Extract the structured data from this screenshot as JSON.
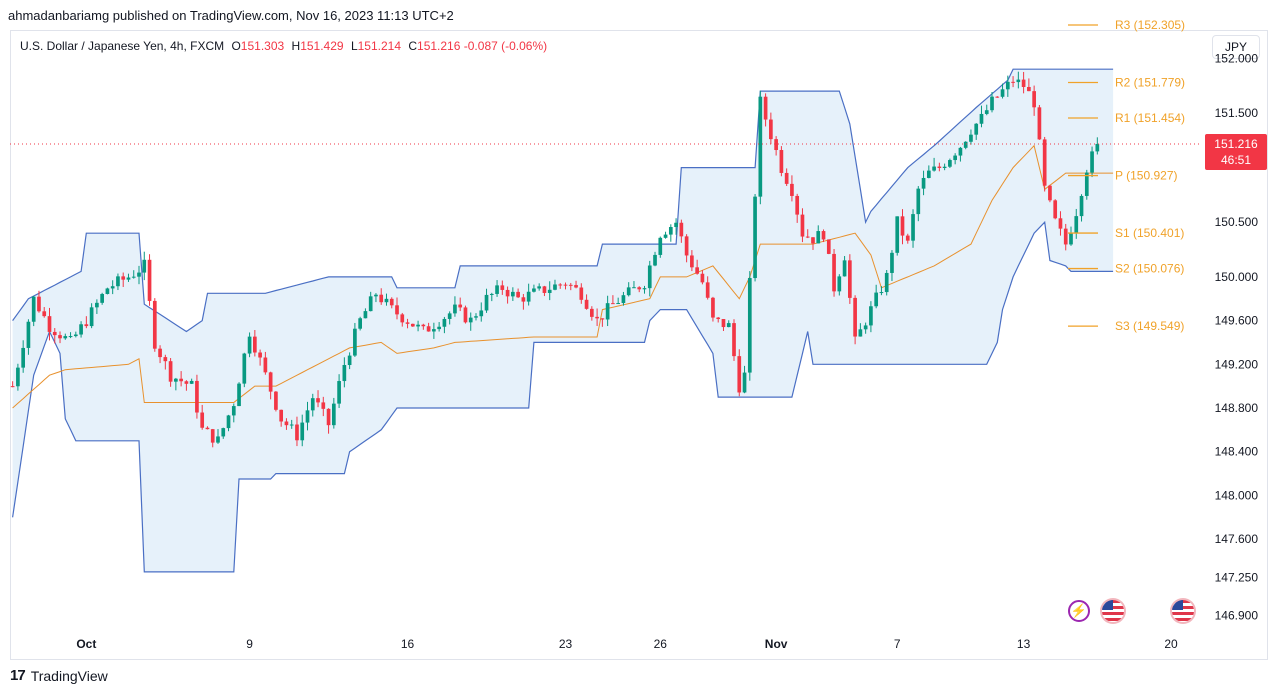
{
  "publisher_line": "ahmadanbariamg published on TradingView.com, Nov 16, 2023 11:13 UTC+2",
  "legend": {
    "symbol": "U.S. Dollar / Japanese Yen, 4h, FXCM",
    "open_label": "O",
    "open": "151.303",
    "high_label": "H",
    "high": "151.429",
    "low_label": "L",
    "low": "151.214",
    "close_label": "C",
    "close": "151.216",
    "change": "-0.087 (-0.06%)"
  },
  "currency_button": "JPY",
  "price_tag": {
    "price": "151.216",
    "countdown": "46:51"
  },
  "footer": {
    "brand": "TradingView",
    "logo_glyph": "17"
  },
  "icons": [
    "lightning-icon",
    "us-flag-icon",
    "us-flag-icon"
  ],
  "colors": {
    "up": "#089981",
    "down": "#f23645",
    "channel": "#4a6fc4",
    "channel_fill": "#e6f1fa",
    "midline": "#e8912d",
    "pivot": "#f0a229",
    "price_tag": "#f23645"
  },
  "chart_data": {
    "type": "candlestick",
    "instrument": "U.S. Dollar / Japanese Yen",
    "timeframe": "4h",
    "ylim": [
      146.75,
      152.25
    ],
    "y_ticks": [
      152.0,
      151.5,
      151.0,
      150.5,
      150.0,
      149.6,
      149.2,
      148.8,
      148.4,
      148.0,
      147.6,
      147.25,
      146.9
    ],
    "y_tick_labels": [
      "152.000",
      "151.500",
      "",
      "150.500",
      "150.000",
      "149.600",
      "149.200",
      "148.800",
      "148.400",
      "148.000",
      "147.600",
      "147.250",
      "146.900"
    ],
    "x_ticks": [
      {
        "label": "Oct",
        "bar": 14,
        "bold": true
      },
      {
        "label": "9",
        "bar": 45
      },
      {
        "label": "16",
        "bar": 75
      },
      {
        "label": "23",
        "bar": 105
      },
      {
        "label": "26",
        "bar": 123
      },
      {
        "label": "Nov",
        "bar": 145,
        "bold": true
      },
      {
        "label": "7",
        "bar": 168
      },
      {
        "label": "13",
        "bar": 192
      },
      {
        "label": "20",
        "bar": 220
      }
    ],
    "pivots": [
      {
        "label": "R3",
        "value": 152.305
      },
      {
        "label": "R2",
        "value": 151.779
      },
      {
        "label": "R1",
        "value": 151.454
      },
      {
        "label": "P",
        "value": 150.927
      },
      {
        "label": "S1",
        "value": 150.401
      },
      {
        "label": "S2",
        "value": 150.076
      },
      {
        "label": "S3",
        "value": 149.549
      }
    ],
    "last_price": 151.216,
    "close_path": [
      [
        0,
        149.0
      ],
      [
        4,
        149.8
      ],
      [
        7,
        149.55
      ],
      [
        11,
        149.4
      ],
      [
        14,
        149.6
      ],
      [
        18,
        149.9
      ],
      [
        22,
        150.0
      ],
      [
        25,
        150.1
      ],
      [
        27,
        149.4
      ],
      [
        30,
        149.1
      ],
      [
        34,
        149.0
      ],
      [
        36,
        148.6
      ],
      [
        39,
        148.5
      ],
      [
        42,
        148.85
      ],
      [
        45,
        149.5
      ],
      [
        48,
        149.1
      ],
      [
        51,
        148.7
      ],
      [
        54,
        148.55
      ],
      [
        57,
        148.9
      ],
      [
        60,
        148.65
      ],
      [
        63,
        149.2
      ],
      [
        66,
        149.6
      ],
      [
        69,
        149.85
      ],
      [
        72,
        149.7
      ],
      [
        75,
        149.6
      ],
      [
        78,
        149.5
      ],
      [
        81,
        149.6
      ],
      [
        84,
        149.7
      ],
      [
        87,
        149.6
      ],
      [
        90,
        149.8
      ],
      [
        93,
        149.9
      ],
      [
        96,
        149.8
      ],
      [
        99,
        149.85
      ],
      [
        102,
        149.9
      ],
      [
        105,
        149.95
      ],
      [
        108,
        149.85
      ],
      [
        111,
        149.6
      ],
      [
        114,
        149.75
      ],
      [
        117,
        149.85
      ],
      [
        120,
        149.95
      ],
      [
        123,
        150.4
      ],
      [
        126,
        150.5
      ],
      [
        128,
        150.2
      ],
      [
        131,
        149.95
      ],
      [
        133,
        149.6
      ],
      [
        136,
        149.55
      ],
      [
        138,
        149.0
      ],
      [
        139,
        149.1
      ],
      [
        142,
        151.6
      ],
      [
        144,
        151.3
      ],
      [
        146,
        151.0
      ],
      [
        148,
        150.8
      ],
      [
        150,
        150.4
      ],
      [
        152,
        150.35
      ],
      [
        154,
        150.4
      ],
      [
        156,
        149.9
      ],
      [
        158,
        150.2
      ],
      [
        160,
        149.4
      ],
      [
        162,
        149.6
      ],
      [
        164,
        149.8
      ],
      [
        166,
        150.0
      ],
      [
        168,
        150.5
      ],
      [
        170,
        150.3
      ],
      [
        172,
        150.8
      ],
      [
        174,
        150.95
      ],
      [
        176,
        151.0
      ],
      [
        178,
        151.1
      ],
      [
        180,
        151.2
      ],
      [
        182,
        151.35
      ],
      [
        184,
        151.45
      ],
      [
        186,
        151.6
      ],
      [
        188,
        151.7
      ],
      [
        190,
        151.8
      ],
      [
        192,
        151.75
      ],
      [
        194,
        151.6
      ],
      [
        196,
        150.8
      ],
      [
        198,
        150.5
      ],
      [
        200,
        150.3
      ],
      [
        202,
        150.6
      ],
      [
        204,
        151.0
      ],
      [
        206,
        151.2
      ]
    ],
    "channel_upper": [
      [
        0,
        149.6
      ],
      [
        3,
        149.8
      ],
      [
        13,
        150.05
      ],
      [
        14,
        150.4
      ],
      [
        24,
        150.4
      ],
      [
        25,
        149.75
      ],
      [
        33,
        149.5
      ],
      [
        36,
        149.6
      ],
      [
        37,
        149.85
      ],
      [
        46,
        149.85
      ],
      [
        48,
        149.85
      ],
      [
        60,
        150.0
      ],
      [
        72,
        150.0
      ],
      [
        73,
        149.9
      ],
      [
        84,
        149.9
      ],
      [
        85,
        150.1
      ],
      [
        111,
        150.1
      ],
      [
        112,
        150.3
      ],
      [
        126,
        150.3
      ],
      [
        127,
        151.0
      ],
      [
        141,
        151.0
      ],
      [
        142,
        151.7
      ],
      [
        157,
        151.7
      ],
      [
        159,
        151.4
      ],
      [
        162,
        150.5
      ],
      [
        163,
        150.6
      ],
      [
        170,
        151.0
      ],
      [
        175,
        151.2
      ],
      [
        183,
        151.55
      ],
      [
        189,
        151.8
      ],
      [
        190,
        151.9
      ],
      [
        209,
        151.9
      ]
    ],
    "channel_lower": [
      [
        0,
        147.8
      ],
      [
        4,
        149.1
      ],
      [
        7,
        149.5
      ],
      [
        9,
        149.3
      ],
      [
        10,
        148.7
      ],
      [
        12,
        148.5
      ],
      [
        24,
        148.5
      ],
      [
        25,
        147.3
      ],
      [
        42,
        147.3
      ],
      [
        43,
        148.15
      ],
      [
        49,
        148.15
      ],
      [
        50,
        148.2
      ],
      [
        63,
        148.2
      ],
      [
        64,
        148.4
      ],
      [
        70,
        148.6
      ],
      [
        73,
        148.8
      ],
      [
        98,
        148.8
      ],
      [
        99,
        149.4
      ],
      [
        120,
        149.4
      ],
      [
        121,
        149.6
      ],
      [
        123,
        149.7
      ],
      [
        128,
        149.7
      ],
      [
        133,
        149.3
      ],
      [
        134,
        148.9
      ],
      [
        148,
        148.9
      ],
      [
        149,
        149.1
      ],
      [
        151,
        149.5
      ],
      [
        152,
        149.2
      ],
      [
        185,
        149.2
      ],
      [
        187,
        149.4
      ],
      [
        188,
        149.7
      ],
      [
        190,
        150.0
      ],
      [
        192,
        150.2
      ],
      [
        194,
        150.4
      ],
      [
        196,
        150.5
      ],
      [
        197,
        150.15
      ],
      [
        200,
        150.1
      ],
      [
        201,
        150.05
      ],
      [
        209,
        150.05
      ]
    ],
    "midline": [
      [
        0,
        148.8
      ],
      [
        7,
        149.1
      ],
      [
        10,
        149.15
      ],
      [
        22,
        149.2
      ],
      [
        24,
        149.25
      ],
      [
        25,
        148.85
      ],
      [
        42,
        148.85
      ],
      [
        46,
        149.0
      ],
      [
        50,
        149.0
      ],
      [
        64,
        149.35
      ],
      [
        70,
        149.4
      ],
      [
        73,
        149.3
      ],
      [
        80,
        149.35
      ],
      [
        84,
        149.4
      ],
      [
        99,
        149.45
      ],
      [
        111,
        149.45
      ],
      [
        112,
        149.7
      ],
      [
        121,
        149.8
      ],
      [
        123,
        150.0
      ],
      [
        128,
        150.0
      ],
      [
        133,
        150.1
      ],
      [
        138,
        149.8
      ],
      [
        140,
        150.0
      ],
      [
        142,
        150.3
      ],
      [
        152,
        150.3
      ],
      [
        160,
        150.4
      ],
      [
        163,
        150.2
      ],
      [
        165,
        149.9
      ],
      [
        175,
        150.1
      ],
      [
        182,
        150.3
      ],
      [
        186,
        150.7
      ],
      [
        190,
        151.0
      ],
      [
        194,
        151.2
      ],
      [
        196,
        150.8
      ],
      [
        200,
        150.95
      ],
      [
        209,
        150.95
      ]
    ]
  }
}
